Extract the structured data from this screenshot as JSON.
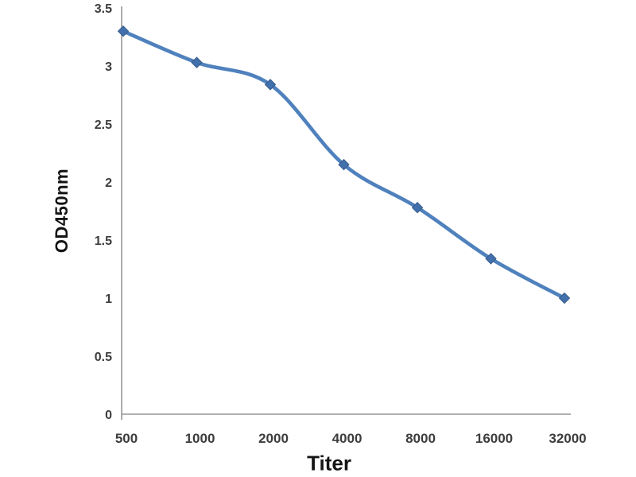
{
  "figure": {
    "background": "#ffffff"
  },
  "chart_data": {
    "type": "line",
    "title": "",
    "xlabel": "Titer",
    "ylabel": "OD450nm",
    "categories": [
      "500",
      "1000",
      "2000",
      "4000",
      "8000",
      "16000",
      "32000"
    ],
    "series": [
      {
        "name": "OD450nm",
        "values": [
          3.3,
          3.03,
          2.84,
          2.15,
          1.78,
          1.34,
          1.0
        ]
      }
    ],
    "ylim": [
      0,
      3.5
    ],
    "ytick_step": 0.5,
    "yticks": [
      "0",
      "0.5",
      "1",
      "1.5",
      "2",
      "2.5",
      "3",
      "3.5"
    ],
    "grid": "off",
    "legend": "none",
    "line_smooth": true,
    "marker": "diamond",
    "colors": {
      "line": "#4f81bd",
      "marker_fill": "#4170ac",
      "marker_edge": "#385d8a",
      "axis": "#969696",
      "tick_text": "#3d3d3d",
      "label_text": "#141414"
    }
  }
}
